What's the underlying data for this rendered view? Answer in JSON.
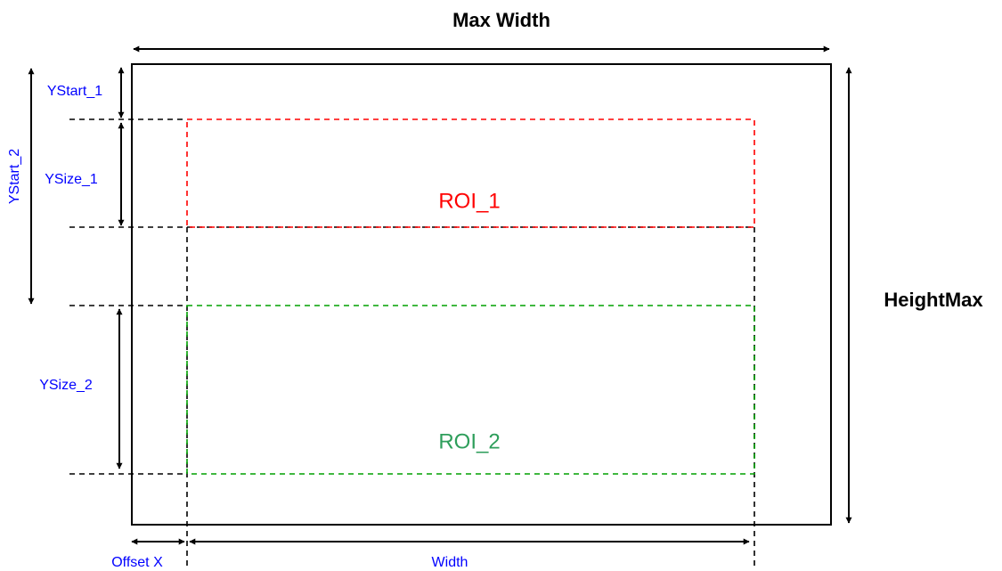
{
  "labels": {
    "max_width": "Max Width",
    "height_max": "HeightMax",
    "ystart_1": "YStart_1",
    "ystart_2": "YStart_2",
    "ysize_1": "YSize_1",
    "ysize_2": "YSize_2",
    "roi_1": "ROI_1",
    "roi_2": "ROI_2",
    "offset_x": "Offset X",
    "width": "Width"
  },
  "colors": {
    "frame": "#000000",
    "roi_1": "#ff0000",
    "roi_2": "#00a000",
    "roi_2_label": "#2e9e5b",
    "parameter_label": "#0000ff",
    "dimension_label": "#000000"
  }
}
